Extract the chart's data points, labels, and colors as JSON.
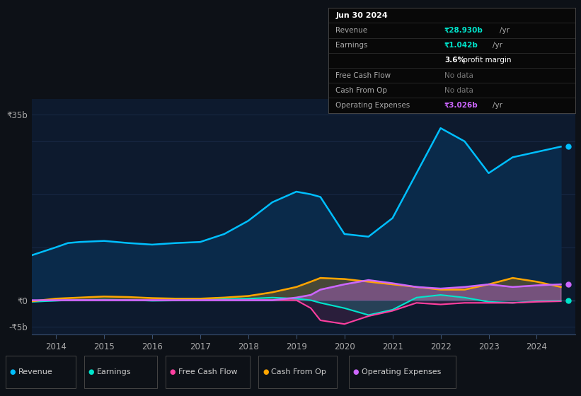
{
  "bg_color": "#0d1117",
  "plot_bg_color": "#0d1a2e",
  "grid_color": "#1e3050",
  "years": [
    2013.5,
    2014.0,
    2014.25,
    2014.5,
    2015.0,
    2015.5,
    2016.0,
    2016.5,
    2017.0,
    2017.5,
    2018.0,
    2018.5,
    2019.0,
    2019.3,
    2019.5,
    2020.0,
    2020.5,
    2021.0,
    2021.5,
    2022.0,
    2022.5,
    2023.0,
    2023.5,
    2024.0,
    2024.5
  ],
  "revenue": [
    8.5,
    10.0,
    10.8,
    11.0,
    11.2,
    10.8,
    10.5,
    10.8,
    11.0,
    12.5,
    15.0,
    18.5,
    20.5,
    20.0,
    19.5,
    12.5,
    12.0,
    15.5,
    24.0,
    32.5,
    30.0,
    24.0,
    27.0,
    28.0,
    29.0
  ],
  "earnings": [
    -0.3,
    -0.1,
    0.0,
    0.05,
    0.1,
    0.05,
    -0.1,
    -0.05,
    0.1,
    0.2,
    0.3,
    0.5,
    0.3,
    0.0,
    -0.5,
    -1.5,
    -2.8,
    -1.8,
    0.5,
    1.0,
    0.5,
    -0.3,
    -0.5,
    -0.2,
    -0.1
  ],
  "free_cash_flow": [
    -0.1,
    0.0,
    0.0,
    0.0,
    0.0,
    0.0,
    0.0,
    0.0,
    0.0,
    0.0,
    0.0,
    0.0,
    0.0,
    -1.5,
    -3.8,
    -4.5,
    -3.0,
    -2.0,
    -0.5,
    -0.8,
    -0.5,
    -0.5,
    -0.5,
    -0.3,
    -0.2
  ],
  "cash_from_op": [
    -0.2,
    0.3,
    0.4,
    0.5,
    0.7,
    0.6,
    0.4,
    0.3,
    0.3,
    0.5,
    0.8,
    1.5,
    2.5,
    3.5,
    4.2,
    4.0,
    3.5,
    3.0,
    2.5,
    2.0,
    2.0,
    3.0,
    4.2,
    3.5,
    2.5
  ],
  "op_expenses": [
    0.0,
    0.0,
    0.0,
    0.0,
    0.0,
    0.0,
    0.0,
    0.0,
    0.0,
    0.0,
    0.0,
    0.0,
    0.5,
    1.0,
    2.0,
    3.0,
    3.8,
    3.2,
    2.5,
    2.2,
    2.5,
    3.0,
    2.5,
    2.8,
    3.0
  ],
  "revenue_color": "#00bfff",
  "earnings_color": "#00e5cc",
  "fcf_color": "#ff3fa0",
  "cashop_color": "#ffa500",
  "opex_color": "#cc66ff",
  "revenue_fill": "#0a2a4a",
  "ylim": [
    -6.5,
    38
  ],
  "xticks": [
    2014,
    2015,
    2016,
    2017,
    2018,
    2019,
    2020,
    2021,
    2022,
    2023,
    2024
  ],
  "xlim": [
    2013.5,
    2024.8
  ],
  "legend_items": [
    "Revenue",
    "Earnings",
    "Free Cash Flow",
    "Cash From Op",
    "Operating Expenses"
  ],
  "legend_colors": [
    "#00bfff",
    "#00e5cc",
    "#ff3fa0",
    "#ffa500",
    "#cc66ff"
  ]
}
